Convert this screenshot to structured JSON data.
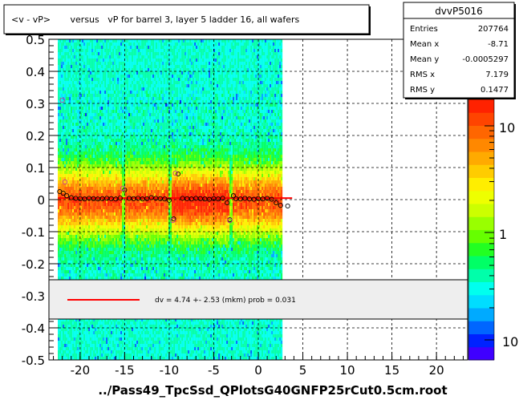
{
  "title": "<v - vP>       versus   vP for barrel 3, layer 5 ladder 16, all wafers",
  "footer": "../Pass49_TpcSsd_QPlotsG40GNFP25rCut0.5cm.root",
  "stats": {
    "name": "dvvP5016",
    "rows": [
      {
        "label": "Entries",
        "value": "207764"
      },
      {
        "label": "Mean x",
        "value": "-8.71"
      },
      {
        "label": "Mean y",
        "value": "-0.0005297"
      },
      {
        "label": "RMS x",
        "value": "7.179"
      },
      {
        "label": "RMS y",
        "value": "0.1477"
      }
    ]
  },
  "legend": {
    "text": "dv =    4.74 +-  2.53 (mkm) prob = 0.031",
    "line_color": "#ff0000"
  },
  "colorbar": {
    "labels": [
      "10",
      "1",
      "10"
    ]
  },
  "chart_data": {
    "type": "heatmap",
    "xlim": [
      -23.5,
      23.5
    ],
    "ylim": [
      -0.5,
      0.5
    ],
    "xticks": [
      -20,
      -15,
      -10,
      -5,
      0,
      5,
      10,
      15,
      20
    ],
    "yticks": [
      -0.5,
      -0.4,
      -0.3,
      -0.2,
      -0.1,
      0,
      0.1,
      0.2,
      0.3,
      0.4,
      0.5
    ],
    "xtick_labels": [
      "-20",
      "-15",
      "-10",
      "-5",
      "0",
      "5",
      "10",
      "15",
      "20"
    ],
    "ytick_labels": [
      "-0.5",
      "-0.4",
      "-0.3",
      "-0.2",
      "-0.1",
      "0",
      "0.1",
      "0.2",
      "0.3",
      "0.4",
      "0.5"
    ],
    "grid": true,
    "x_range_filled": [
      -22.5,
      2.7
    ],
    "fit": {
      "x_start": -22.5,
      "x_end": 3.8,
      "y": 0.00474,
      "color": "#ff0000"
    },
    "profile_points": [
      {
        "x": -22.3,
        "y": 0.025
      },
      {
        "x": -21.9,
        "y": 0.02
      },
      {
        "x": -21.5,
        "y": 0.012
      },
      {
        "x": -21.0,
        "y": 0.006
      },
      {
        "x": -20.5,
        "y": 0.004
      },
      {
        "x": -20.0,
        "y": 0.003
      },
      {
        "x": -19.5,
        "y": 0.002
      },
      {
        "x": -19.0,
        "y": 0.004
      },
      {
        "x": -18.5,
        "y": 0.003
      },
      {
        "x": -18.0,
        "y": 0.002
      },
      {
        "x": -17.5,
        "y": 0.003
      },
      {
        "x": -17.0,
        "y": 0.004
      },
      {
        "x": -16.5,
        "y": 0.003
      },
      {
        "x": -16.0,
        "y": 0.002
      },
      {
        "x": -15.5,
        "y": 0.005
      },
      {
        "x": -15.0,
        "y": 0.03
      },
      {
        "x": -14.5,
        "y": 0.004
      },
      {
        "x": -14.0,
        "y": 0.003
      },
      {
        "x": -13.5,
        "y": 0.004
      },
      {
        "x": -13.0,
        "y": 0.002
      },
      {
        "x": -12.5,
        "y": 0.003
      },
      {
        "x": -12.0,
        "y": 0.006
      },
      {
        "x": -11.5,
        "y": 0.004
      },
      {
        "x": -11.0,
        "y": 0.003
      },
      {
        "x": -10.5,
        "y": 0.002
      },
      {
        "x": -10.0,
        "y": -0.002
      },
      {
        "x": -9.5,
        "y": -0.06
      },
      {
        "x": -9.0,
        "y": 0.08
      },
      {
        "x": -8.5,
        "y": 0.004
      },
      {
        "x": -8.0,
        "y": 0.003
      },
      {
        "x": -7.5,
        "y": 0.002
      },
      {
        "x": -7.0,
        "y": 0.004
      },
      {
        "x": -6.5,
        "y": 0.003
      },
      {
        "x": -6.0,
        "y": 0.002
      },
      {
        "x": -5.5,
        "y": 0.001
      },
      {
        "x": -5.0,
        "y": 0.003
      },
      {
        "x": -4.5,
        "y": 0.002
      },
      {
        "x": -4.0,
        "y": 0.004
      },
      {
        "x": -3.5,
        "y": -0.01
      },
      {
        "x": -3.2,
        "y": -0.063
      },
      {
        "x": -2.8,
        "y": 0.012
      },
      {
        "x": -2.5,
        "y": 0.003
      },
      {
        "x": -2.0,
        "y": 0.002
      },
      {
        "x": -1.5,
        "y": 0.004
      },
      {
        "x": -1.0,
        "y": 0.002
      },
      {
        "x": -0.5,
        "y": 0.001
      },
      {
        "x": 0.0,
        "y": 0.003
      },
      {
        "x": 0.5,
        "y": 0.002
      },
      {
        "x": 1.0,
        "y": 0.004
      },
      {
        "x": 1.5,
        "y": 0.001
      },
      {
        "x": 2.0,
        "y": -0.01
      },
      {
        "x": 2.5,
        "y": -0.018
      },
      {
        "x": 3.3,
        "y": -0.02
      }
    ],
    "outlier_points": [
      {
        "x": -22.0,
        "y": 0.31
      },
      {
        "x": -21.7,
        "y": 0.055
      },
      {
        "x": -15.2,
        "y": 0.035
      },
      {
        "x": -9.3,
        "y": 0.082
      },
      {
        "x": -9.6,
        "y": -0.065
      },
      {
        "x": -3.2,
        "y": -0.065
      }
    ],
    "colorbar_scale": "log"
  }
}
